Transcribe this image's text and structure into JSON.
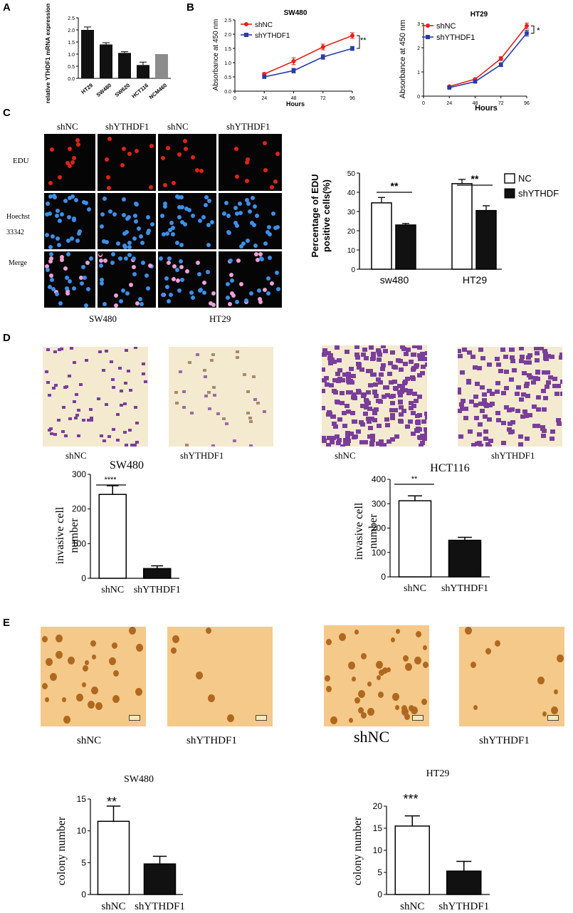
{
  "panels": [
    "A",
    "B",
    "C",
    "D",
    "E"
  ],
  "colors": {
    "red": "#e2231a",
    "blue": "#2a3aa8",
    "bar_black": "#111111",
    "bar_gray": "#8c8c8c",
    "stain_bg": "#f3ead0",
    "stain_purple": "#7a3e9a",
    "colony_bg": "#f4c98a",
    "colony_dot": "#b0681f"
  },
  "panelA": {
    "ylabel": "relative YTHDF1 mRNA expression",
    "chart_data": {
      "type": "bar",
      "categories": [
        "HT29",
        "SW480",
        "SW620",
        "HCT116",
        "NCM460"
      ],
      "values": [
        2.0,
        1.4,
        1.05,
        0.55,
        1.0
      ],
      "errors": [
        0.12,
        0.07,
        0.05,
        0.12,
        0.0
      ],
      "ylim": [
        0,
        2.5
      ],
      "yticks": [
        "0.0",
        "0.5",
        "1.0",
        "1.5",
        "2.0",
        "2.5"
      ]
    }
  },
  "panelB": {
    "charts": [
      {
        "title": "SW480",
        "ylabel": "Absorbance at 450 nm",
        "xlabel": "Hours",
        "sig": "**",
        "chart_data": {
          "type": "line",
          "x": [
            24,
            48,
            72,
            96
          ],
          "xlim": [
            0,
            96
          ],
          "xticks": [
            "0",
            "24",
            "48",
            "72",
            "96"
          ],
          "ylim": [
            0,
            2.5
          ],
          "yticks": [
            "0.0",
            "0.5",
            "1.0",
            "1.5",
            "2.0",
            "2.5"
          ],
          "series": [
            {
              "name": "shNC",
              "values": [
                0.6,
                1.05,
                1.55,
                1.95
              ],
              "errors": [
                0.05,
                0.12,
                0.1,
                0.1
              ]
            },
            {
              "name": "shYTHDF1",
              "values": [
                0.5,
                0.72,
                1.2,
                1.5
              ],
              "errors": [
                0.04,
                0.08,
                0.08,
                0.07
              ]
            }
          ]
        }
      },
      {
        "title": "HT29",
        "ylabel": "Absorbance at 450 nm",
        "xlabel": "Hours",
        "sig": "*",
        "chart_data": {
          "type": "line",
          "x": [
            24,
            48,
            72,
            96
          ],
          "xlim": [
            0,
            96
          ],
          "xticks": [
            "0",
            "24",
            "48",
            "72",
            "96"
          ],
          "ylim": [
            0,
            3
          ],
          "yticks": [
            "0",
            "1",
            "2",
            "3"
          ],
          "series": [
            {
              "name": "shNC",
              "values": [
                0.4,
                0.7,
                1.55,
                2.9
              ],
              "errors": [
                0.03,
                0.04,
                0.08,
                0.12
              ]
            },
            {
              "name": "shYTHDF1",
              "values": [
                0.35,
                0.6,
                1.3,
                2.6
              ],
              "errors": [
                0.03,
                0.04,
                0.08,
                0.12
              ]
            }
          ]
        }
      }
    ]
  },
  "panelC": {
    "col_labels": [
      "shNC",
      "shYTHDF1",
      "shNC",
      "shYTHDF1"
    ],
    "row_labels": [
      "EDU",
      "Hoechst 33342",
      "Merge"
    ],
    "group_labels": [
      "SW480",
      "HT29"
    ],
    "chart": {
      "ylabel": "Percentage of EDU positive cells(%)",
      "sig": [
        "**",
        "**"
      ],
      "chart_data": {
        "type": "bar",
        "categories": [
          "sw480",
          "HT29"
        ],
        "ylim": [
          0,
          50
        ],
        "yticks": [
          "0",
          "10",
          "20",
          "30",
          "40",
          "50"
        ],
        "series": [
          {
            "name": "NC",
            "values": [
              34.5,
              44.5
            ],
            "errors": [
              2.8,
              2.2
            ]
          },
          {
            "name": "shYTHDF",
            "values": [
              23,
              30.5
            ],
            "errors": [
              0.8,
              2.5
            ]
          }
        ]
      }
    }
  },
  "panelD": {
    "image_labels": [
      "shNC",
      "shYTHDF1",
      "shNC",
      "shYTHDF1"
    ],
    "charts": [
      {
        "title": "SW480",
        "ylabel": "invasive cell number",
        "sig": "****",
        "chart_data": {
          "type": "bar",
          "categories": [
            "shNC",
            "shYTHDF1"
          ],
          "values": [
            242,
            28
          ],
          "errors": [
            25,
            8
          ],
          "ylim": [
            0,
            300
          ],
          "yticks": [
            "0",
            "100",
            "200",
            "300"
          ]
        }
      },
      {
        "title": "HCT116",
        "ylabel": "invasive cell number",
        "sig": "**",
        "chart_data": {
          "type": "bar",
          "categories": [
            "shNC",
            "shYTHDF1"
          ],
          "values": [
            312,
            150
          ],
          "errors": [
            20,
            12
          ],
          "ylim": [
            0,
            400
          ],
          "yticks": [
            "0",
            "100",
            "200",
            "300",
            "400"
          ]
        }
      }
    ]
  },
  "panelE": {
    "image_labels": [
      "shNC",
      "shYTHDF1",
      "shNC",
      "shYTHDF1"
    ],
    "charts": [
      {
        "title": "SW480",
        "ylabel": "colony number",
        "sig": "**",
        "chart_data": {
          "type": "bar",
          "categories": [
            "shNC",
            "shYTHDF1"
          ],
          "values": [
            11.5,
            4.8
          ],
          "errors": [
            2.4,
            1.2
          ],
          "ylim": [
            0,
            15
          ],
          "yticks": [
            "0",
            "5",
            "10",
            "15"
          ]
        }
      },
      {
        "title": "HT29",
        "ylabel": "colony number",
        "sig": "***",
        "chart_data": {
          "type": "bar",
          "categories": [
            "shNC",
            "shYTHDF1"
          ],
          "values": [
            15.5,
            5.3
          ],
          "errors": [
            2.3,
            2.2
          ],
          "ylim": [
            0,
            20
          ],
          "yticks": [
            "0",
            "5",
            "10",
            "15",
            "20"
          ]
        }
      }
    ]
  }
}
